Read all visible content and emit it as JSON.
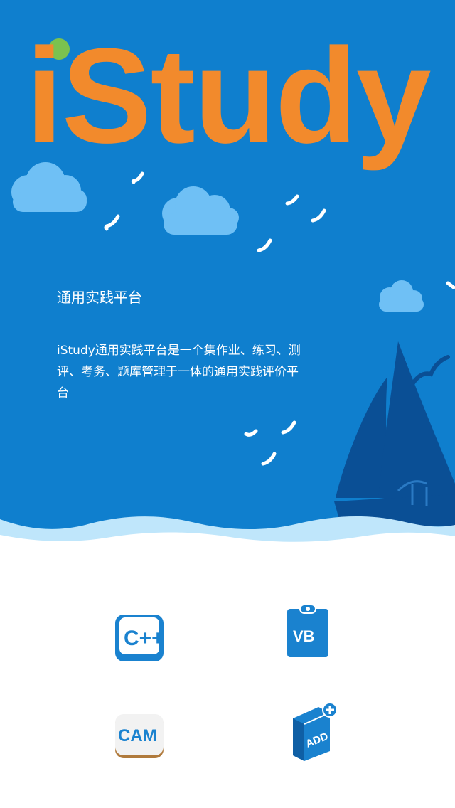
{
  "logo": {
    "text": "iStudy"
  },
  "intro": {
    "title": "通用实践平台",
    "description": "iStudy通用实践平台是一个集作业、练习、测评、考务、题库管理于一体的通用实践评价平台"
  },
  "apps": [
    {
      "icon": "cpp-icon",
      "label": "C++"
    },
    {
      "icon": "vb-clipboard-icon",
      "label": "VB"
    },
    {
      "icon": "cam-icon",
      "label": "CAM"
    },
    {
      "icon": "add-book-icon",
      "label": "ADD"
    }
  ],
  "colors": {
    "sky": "#0f7fce",
    "logo_orange": "#f28a2c",
    "logo_green": "#7bc24f",
    "cloud": "#6fc0f5",
    "wave": "#bfe6fb",
    "sail_dark": "#0a4f95",
    "app_blue": "#1a82cf"
  }
}
